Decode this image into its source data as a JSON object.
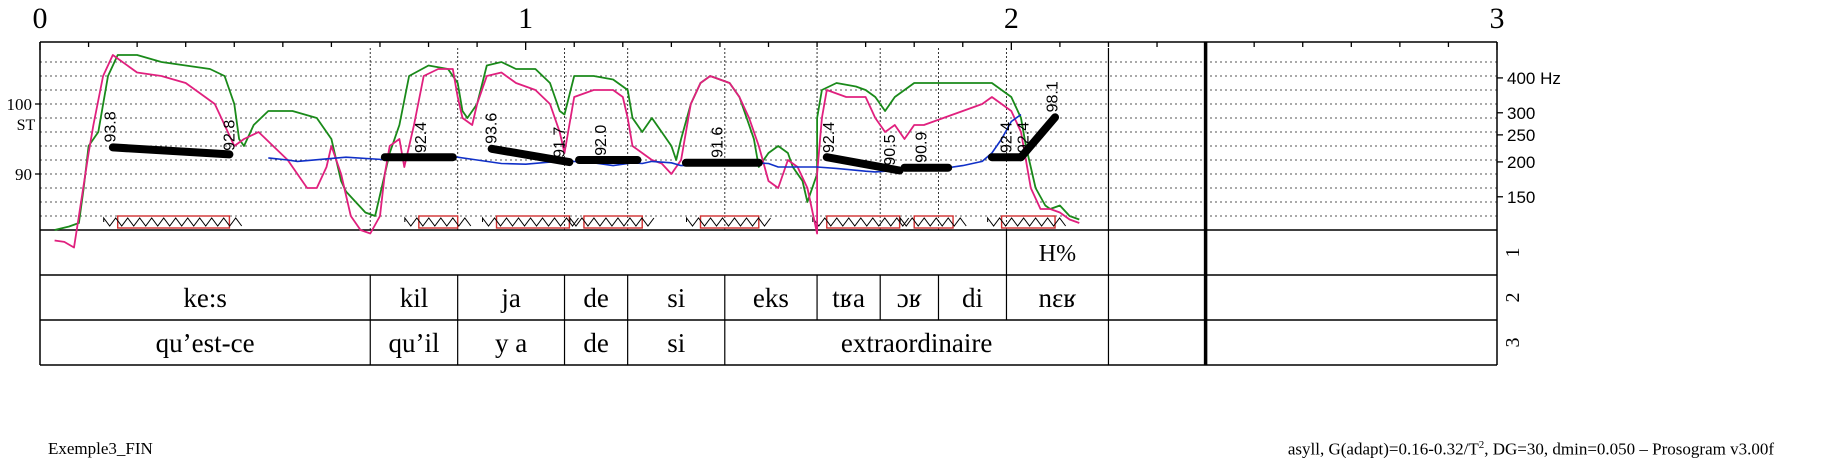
{
  "chart_data": {
    "type": "line",
    "title": "",
    "x_axis": {
      "range": [
        0,
        3
      ],
      "ticks": [
        "0",
        "1",
        "2",
        "3"
      ]
    },
    "y_axis_left": {
      "label": "ST",
      "ticks": [
        "100",
        "90"
      ],
      "tick_values": [
        100,
        90
      ]
    },
    "y_axis_right": {
      "unit_label": "400 Hz",
      "ticks": [
        "400 Hz",
        "300",
        "250",
        "200",
        "150"
      ],
      "tick_values": [
        400,
        300,
        250,
        200,
        150
      ]
    },
    "plot_time_range": [
      0,
      2.4
    ],
    "st_range": [
      82,
      108
    ],
    "series": [
      {
        "role": "green",
        "color": "#1a8a1a",
        "points": [
          [
            0.03,
            82
          ],
          [
            0.06,
            82.5
          ],
          [
            0.08,
            83
          ],
          [
            0.09,
            88
          ],
          [
            0.1,
            94
          ],
          [
            0.12,
            96
          ],
          [
            0.14,
            104
          ],
          [
            0.16,
            107
          ],
          [
            0.2,
            107
          ],
          [
            0.25,
            106
          ],
          [
            0.3,
            105.5
          ],
          [
            0.35,
            105
          ],
          [
            0.38,
            104
          ],
          [
            0.4,
            100
          ],
          [
            0.41,
            95
          ],
          [
            0.42,
            94
          ],
          [
            0.44,
            97
          ],
          [
            0.47,
            99
          ],
          [
            0.52,
            99
          ],
          [
            0.57,
            98
          ],
          [
            0.6,
            95
          ],
          [
            0.62,
            89
          ],
          [
            0.63,
            87.5
          ],
          [
            0.65,
            86
          ],
          [
            0.67,
            84.5
          ],
          [
            0.69,
            84
          ],
          [
            0.7,
            87
          ],
          [
            0.72,
            93
          ],
          [
            0.74,
            97
          ],
          [
            0.76,
            104
          ],
          [
            0.8,
            105.5
          ],
          [
            0.84,
            105
          ],
          [
            0.86,
            103
          ],
          [
            0.87,
            99
          ],
          [
            0.88,
            98
          ],
          [
            0.9,
            100
          ],
          [
            0.92,
            105.5
          ],
          [
            0.95,
            106
          ],
          [
            0.98,
            105
          ],
          [
            1.02,
            105
          ],
          [
            1.05,
            103
          ],
          [
            1.07,
            99
          ],
          [
            1.08,
            98.5
          ],
          [
            1.1,
            104
          ],
          [
            1.14,
            104
          ],
          [
            1.18,
            103.5
          ],
          [
            1.21,
            102
          ],
          [
            1.22,
            98
          ],
          [
            1.23,
            97
          ],
          [
            1.24,
            96
          ],
          [
            1.26,
            98
          ],
          [
            1.28,
            96
          ],
          [
            1.3,
            94
          ],
          [
            1.31,
            92
          ],
          [
            1.32,
            95
          ],
          [
            1.34,
            100
          ],
          [
            1.36,
            103
          ],
          [
            1.38,
            104
          ],
          [
            1.42,
            103
          ],
          [
            1.44,
            101
          ],
          [
            1.46,
            97
          ],
          [
            1.47,
            95
          ],
          [
            1.48,
            91
          ],
          [
            1.5,
            93
          ],
          [
            1.52,
            94
          ],
          [
            1.54,
            93
          ],
          [
            1.55,
            91
          ],
          [
            1.57,
            89
          ],
          [
            1.58,
            86
          ],
          [
            1.6,
            90
          ],
          [
            1.6,
            98
          ],
          [
            1.61,
            102
          ],
          [
            1.64,
            103
          ],
          [
            1.68,
            102.5
          ],
          [
            1.7,
            102
          ],
          [
            1.72,
            101
          ],
          [
            1.74,
            99
          ],
          [
            1.76,
            101
          ],
          [
            1.8,
            103
          ],
          [
            1.86,
            103
          ],
          [
            1.9,
            103
          ],
          [
            1.96,
            103
          ],
          [
            1.98,
            102
          ],
          [
            2.0,
            101
          ],
          [
            2.02,
            98
          ],
          [
            2.03,
            94
          ],
          [
            2.05,
            88
          ],
          [
            2.07,
            85.5
          ],
          [
            2.08,
            85
          ],
          [
            2.1,
            85.5
          ],
          [
            2.12,
            84
          ],
          [
            2.14,
            83.5
          ]
        ]
      },
      {
        "role": "magenta",
        "color": "#e0207e",
        "points": [
          [
            0.03,
            80.5
          ],
          [
            0.05,
            80.3
          ],
          [
            0.07,
            79.5
          ],
          [
            0.08,
            84
          ],
          [
            0.1,
            93
          ],
          [
            0.11,
            97
          ],
          [
            0.13,
            104
          ],
          [
            0.15,
            107
          ],
          [
            0.2,
            104.5
          ],
          [
            0.25,
            104
          ],
          [
            0.3,
            103
          ],
          [
            0.33,
            101.5
          ],
          [
            0.36,
            100
          ],
          [
            0.38,
            97
          ],
          [
            0.4,
            94
          ],
          [
            0.42,
            95
          ],
          [
            0.45,
            96
          ],
          [
            0.48,
            94
          ],
          [
            0.51,
            92
          ],
          [
            0.53,
            90
          ],
          [
            0.55,
            88
          ],
          [
            0.57,
            88
          ],
          [
            0.59,
            91
          ],
          [
            0.6,
            94
          ],
          [
            0.62,
            90
          ],
          [
            0.64,
            84
          ],
          [
            0.66,
            82
          ],
          [
            0.68,
            81.5
          ],
          [
            0.7,
            84
          ],
          [
            0.71,
            90
          ],
          [
            0.72,
            94
          ],
          [
            0.74,
            95
          ],
          [
            0.75,
            91
          ],
          [
            0.77,
            97
          ],
          [
            0.79,
            104
          ],
          [
            0.82,
            105
          ],
          [
            0.85,
            105
          ],
          [
            0.86,
            101
          ],
          [
            0.87,
            98
          ],
          [
            0.89,
            97
          ],
          [
            0.9,
            100
          ],
          [
            0.92,
            104
          ],
          [
            0.95,
            104.5
          ],
          [
            0.98,
            103
          ],
          [
            1.02,
            102
          ],
          [
            1.05,
            100
          ],
          [
            1.07,
            96
          ],
          [
            1.08,
            93
          ],
          [
            1.1,
            101
          ],
          [
            1.14,
            102
          ],
          [
            1.18,
            102
          ],
          [
            1.2,
            101
          ],
          [
            1.21,
            98
          ],
          [
            1.22,
            94
          ],
          [
            1.24,
            93
          ],
          [
            1.26,
            92
          ],
          [
            1.28,
            91.5
          ],
          [
            1.3,
            90
          ],
          [
            1.32,
            92
          ],
          [
            1.34,
            100
          ],
          [
            1.36,
            103
          ],
          [
            1.38,
            104
          ],
          [
            1.42,
            103
          ],
          [
            1.44,
            101
          ],
          [
            1.46,
            98
          ],
          [
            1.48,
            94
          ],
          [
            1.5,
            89
          ],
          [
            1.52,
            88
          ],
          [
            1.54,
            92
          ],
          [
            1.56,
            91
          ],
          [
            1.58,
            88
          ],
          [
            1.6,
            81.5
          ],
          [
            1.6,
            90
          ],
          [
            1.61,
            98
          ],
          [
            1.62,
            102
          ],
          [
            1.66,
            101
          ],
          [
            1.7,
            101
          ],
          [
            1.72,
            98
          ],
          [
            1.74,
            96
          ],
          [
            1.76,
            97
          ],
          [
            1.78,
            95
          ],
          [
            1.8,
            97
          ],
          [
            1.82,
            97
          ],
          [
            1.86,
            98
          ],
          [
            1.9,
            99
          ],
          [
            1.94,
            100
          ],
          [
            1.96,
            101
          ],
          [
            1.98,
            100
          ],
          [
            2.0,
            99
          ],
          [
            2.02,
            96
          ],
          [
            2.03,
            92
          ],
          [
            2.04,
            88
          ],
          [
            2.06,
            85
          ],
          [
            2.08,
            85
          ],
          [
            2.1,
            84.5
          ],
          [
            2.12,
            83.5
          ],
          [
            2.14,
            83
          ]
        ]
      },
      {
        "role": "blue",
        "color": "#1030c8",
        "points": [
          [
            0.47,
            92.3
          ],
          [
            0.51,
            92.0
          ],
          [
            0.53,
            91.8
          ],
          [
            0.63,
            92.4
          ],
          [
            0.72,
            92.0
          ],
          [
            0.75,
            92.5
          ],
          [
            0.78,
            92.3
          ],
          [
            0.84,
            92.6
          ],
          [
            0.9,
            92.0
          ],
          [
            0.95,
            91.5
          ],
          [
            1.0,
            91.4
          ],
          [
            1.05,
            91.7
          ],
          [
            1.08,
            92.0
          ],
          [
            1.1,
            91.8
          ],
          [
            1.14,
            91.6
          ],
          [
            1.18,
            91.2
          ],
          [
            1.22,
            91.6
          ],
          [
            1.24,
            91.5
          ],
          [
            1.26,
            91.8
          ],
          [
            1.3,
            91.6
          ],
          [
            1.32,
            91.2
          ],
          [
            1.38,
            91.4
          ],
          [
            1.44,
            91.7
          ],
          [
            1.5,
            91.5
          ],
          [
            1.52,
            91.0
          ],
          [
            1.6,
            91.0
          ],
          [
            1.64,
            90.8
          ],
          [
            1.7,
            90.4
          ],
          [
            1.72,
            90.3
          ],
          [
            1.76,
            90.5
          ],
          [
            1.82,
            90.6
          ],
          [
            1.86,
            90.8
          ],
          [
            1.9,
            91.2
          ],
          [
            1.94,
            91.8
          ],
          [
            1.96,
            93
          ],
          [
            1.98,
            95
          ],
          [
            2.0,
            97.5
          ],
          [
            2.02,
            98.5
          ]
        ]
      }
    ],
    "stylization_segments": [
      {
        "t1": 0.15,
        "t2": 0.39,
        "st1": 93.8,
        "st2": 92.8
      },
      {
        "t1": 0.71,
        "t2": 0.85,
        "st1": 92.4,
        "st2": 92.4
      },
      {
        "t1": 0.93,
        "t2": 1.09,
        "st1": 93.6,
        "st2": 91.7
      },
      {
        "t1": 1.11,
        "t2": 1.23,
        "st1": 92.0,
        "st2": 92.0
      },
      {
        "t1": 1.33,
        "t2": 1.48,
        "st1": 91.6,
        "st2": 91.6
      },
      {
        "t1": 1.62,
        "t2": 1.77,
        "st1": 92.4,
        "st2": 90.5
      },
      {
        "t1": 1.78,
        "t2": 1.87,
        "st1": 90.9,
        "st2": 90.9
      },
      {
        "t1": 1.96,
        "t2": 2.02,
        "st1": 92.4,
        "st2": 92.4
      },
      {
        "t1": 2.02,
        "t2": 2.09,
        "st1": 92.4,
        "st2": 98.1
      }
    ],
    "value_labels": [
      {
        "text": "93.8",
        "t": 0.155,
        "st": 94.5
      },
      {
        "text": "92.8",
        "t": 0.4,
        "st": 93.3
      },
      {
        "text": "92.4",
        "t": 0.795,
        "st": 93.0
      },
      {
        "text": "93.6",
        "t": 0.94,
        "st": 94.3
      },
      {
        "text": "91.7",
        "t": 1.08,
        "st": 92.3
      },
      {
        "text": "92.0",
        "t": 1.165,
        "st": 92.6
      },
      {
        "text": "91.6",
        "t": 1.405,
        "st": 92.3
      },
      {
        "text": "92.4",
        "t": 1.635,
        "st": 93.0
      },
      {
        "text": "90.5",
        "t": 1.76,
        "st": 91.2
      },
      {
        "text": "90.9",
        "t": 1.825,
        "st": 91.6
      },
      {
        "text": "92.4",
        "t": 2.0,
        "st": 93.0
      },
      {
        "text": "92.4",
        "t": 2.035,
        "st": 93.0
      },
      {
        "text": "98.1",
        "t": 2.095,
        "st": 98.8
      }
    ],
    "nuclei": [
      [
        0.16,
        0.39
      ],
      [
        0.78,
        0.86
      ],
      [
        0.94,
        1.09
      ],
      [
        1.12,
        1.24
      ],
      [
        1.36,
        1.48
      ],
      [
        1.62,
        1.77
      ],
      [
        1.8,
        1.88
      ],
      [
        1.98,
        2.09
      ]
    ],
    "tier_boundaries": {
      "tier1": [
        [
          0,
          1.99,
          ""
        ],
        [
          1.99,
          2.2,
          "H%"
        ]
      ],
      "tier2": [
        [
          0,
          0.68,
          "ke:s"
        ],
        [
          0.68,
          0.86,
          "kil"
        ],
        [
          0.86,
          1.08,
          "ja"
        ],
        [
          1.08,
          1.21,
          "de"
        ],
        [
          1.21,
          1.41,
          "si"
        ],
        [
          1.41,
          1.6,
          "eks"
        ],
        [
          1.6,
          1.73,
          "tʁa"
        ],
        [
          1.73,
          1.85,
          "ɔʁ"
        ],
        [
          1.85,
          1.99,
          "di"
        ],
        [
          1.99,
          2.2,
          "nɛʁ"
        ]
      ],
      "tier3": [
        [
          0,
          0.68,
          "qu’est-ce"
        ],
        [
          0.68,
          0.86,
          "qu’il"
        ],
        [
          0.86,
          1.08,
          "y a"
        ],
        [
          1.08,
          1.21,
          "de"
        ],
        [
          1.21,
          1.41,
          "si"
        ],
        [
          1.41,
          2.2,
          "extraordinaire"
        ]
      ]
    },
    "tier_numbers": [
      "1",
      "2",
      "3"
    ]
  },
  "caption": {
    "left": "Exemple3_FIN",
    "right_pre": "asyll, G(adapt)=0.16-0.32/T",
    "right_sup": "2",
    "right_post": ", DG=30, dmin=0.050 – Prosogram v3.00f"
  },
  "colors": {
    "green": "#1a8a1a",
    "magenta": "#e0207e",
    "blue": "#1030c8",
    "stylization": "#000000",
    "nucleus": "#d03030"
  }
}
